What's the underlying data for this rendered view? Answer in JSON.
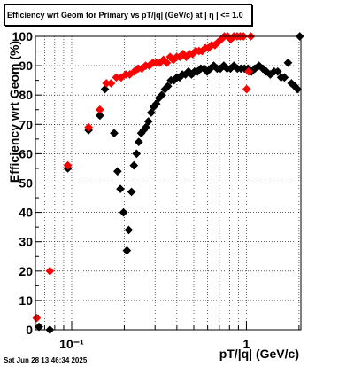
{
  "chart_data": {
    "type": "scatter",
    "title": "Efficiency wrt Geom for Primary vs pT/|q| (GeV/c) at |  η  | <= 1.0",
    "xlabel": "pT/|q| (GeV/c)",
    "ylabel": "Efficiency wrt Geom (%)",
    "xscale": "log",
    "xlim": [
      0.062,
      2.05
    ],
    "ylim": [
      0,
      100
    ],
    "grid": true,
    "y_ticks": [
      0,
      10,
      20,
      30,
      40,
      50,
      60,
      70,
      80,
      90,
      100
    ],
    "y_tick_labels": [
      "0",
      "10",
      "20",
      "30",
      "40",
      "50",
      "60",
      "70",
      "80",
      "90",
      "100"
    ],
    "x_ticks": [
      0.1,
      1
    ],
    "x_tick_labels": [
      "10⁻¹",
      "1"
    ],
    "series": [
      {
        "name": "",
        "color": "#000000",
        "points": [
          [
            0.065,
            1
          ],
          [
            0.075,
            0
          ],
          [
            0.095,
            55
          ],
          [
            0.125,
            68
          ],
          [
            0.145,
            73
          ],
          [
            0.155,
            82
          ],
          [
            0.175,
            67
          ],
          [
            0.183,
            54
          ],
          [
            0.19,
            48
          ],
          [
            0.198,
            40
          ],
          [
            0.207,
            27
          ],
          [
            0.212,
            34
          ],
          [
            0.22,
            47
          ],
          [
            0.227,
            56
          ],
          [
            0.235,
            60
          ],
          [
            0.242,
            64
          ],
          [
            0.25,
            67
          ],
          [
            0.258,
            68
          ],
          [
            0.266,
            69
          ],
          [
            0.275,
            71
          ],
          [
            0.285,
            74
          ],
          [
            0.295,
            76
          ],
          [
            0.305,
            77
          ],
          [
            0.316,
            79
          ],
          [
            0.328,
            80
          ],
          [
            0.342,
            82
          ],
          [
            0.355,
            83
          ],
          [
            0.37,
            85
          ],
          [
            0.385,
            85
          ],
          [
            0.4,
            86
          ],
          [
            0.415,
            86
          ],
          [
            0.43,
            87
          ],
          [
            0.448,
            87
          ],
          [
            0.466,
            88
          ],
          [
            0.485,
            87
          ],
          [
            0.505,
            88
          ],
          [
            0.525,
            88
          ],
          [
            0.548,
            89
          ],
          [
            0.572,
            89
          ],
          [
            0.596,
            88
          ],
          [
            0.622,
            89
          ],
          [
            0.65,
            90
          ],
          [
            0.68,
            89
          ],
          [
            0.71,
            89
          ],
          [
            0.742,
            90
          ],
          [
            0.775,
            89
          ],
          [
            0.81,
            89
          ],
          [
            0.848,
            90
          ],
          [
            0.888,
            89
          ],
          [
            0.93,
            89
          ],
          [
            0.975,
            89
          ],
          [
            1.02,
            89
          ],
          [
            1.07,
            88
          ],
          [
            1.12,
            89
          ],
          [
            1.18,
            90
          ],
          [
            1.24,
            89
          ],
          [
            1.3,
            88
          ],
          [
            1.37,
            87
          ],
          [
            1.44,
            88
          ],
          [
            1.51,
            88
          ],
          [
            1.58,
            86
          ],
          [
            1.65,
            86
          ],
          [
            1.73,
            91
          ],
          [
            1.81,
            84
          ],
          [
            1.89,
            83
          ],
          [
            1.96,
            82
          ],
          [
            2.02,
            100
          ]
        ]
      },
      {
        "name": "",
        "color": "#ff0000",
        "points": [
          [
            0.063,
            4
          ],
          [
            0.075,
            20
          ],
          [
            0.095,
            56
          ],
          [
            0.125,
            69
          ],
          [
            0.145,
            75
          ],
          [
            0.158,
            84
          ],
          [
            0.168,
            84
          ],
          [
            0.18,
            86
          ],
          [
            0.192,
            86
          ],
          [
            0.204,
            87
          ],
          [
            0.215,
            87
          ],
          [
            0.228,
            88
          ],
          [
            0.24,
            89
          ],
          [
            0.252,
            89
          ],
          [
            0.265,
            90
          ],
          [
            0.278,
            90
          ],
          [
            0.292,
            91
          ],
          [
            0.306,
            91
          ],
          [
            0.32,
            91
          ],
          [
            0.335,
            92
          ],
          [
            0.35,
            91
          ],
          [
            0.366,
            93
          ],
          [
            0.382,
            92
          ],
          [
            0.399,
            93
          ],
          [
            0.416,
            93
          ],
          [
            0.434,
            94
          ],
          [
            0.452,
            93
          ],
          [
            0.472,
            94
          ],
          [
            0.492,
            94
          ],
          [
            0.513,
            95
          ],
          [
            0.535,
            95
          ],
          [
            0.558,
            95
          ],
          [
            0.582,
            96
          ],
          [
            0.607,
            96
          ],
          [
            0.633,
            97
          ],
          [
            0.66,
            97
          ],
          [
            0.688,
            98
          ],
          [
            0.718,
            99
          ],
          [
            0.748,
            100
          ],
          [
            0.78,
            100
          ],
          [
            0.813,
            99
          ],
          [
            0.848,
            100
          ],
          [
            0.884,
            100
          ],
          [
            0.922,
            100
          ],
          [
            0.962,
            100
          ],
          [
            1.003,
            82
          ],
          [
            1.03,
            88
          ],
          [
            1.06,
            100
          ]
        ]
      }
    ]
  }
}
